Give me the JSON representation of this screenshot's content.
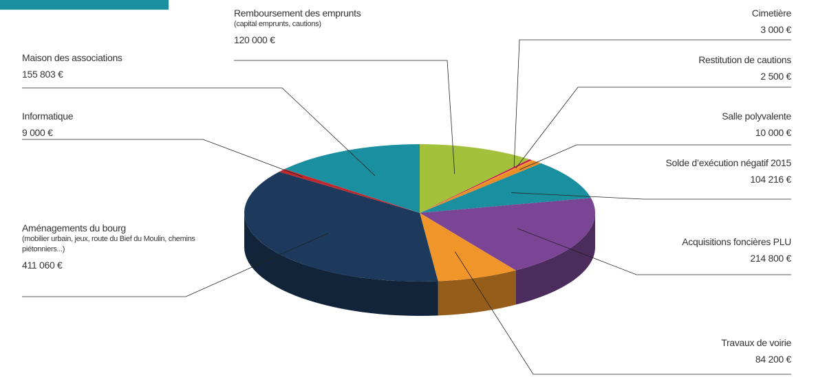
{
  "chart_data": {
    "type": "pie",
    "categories": [
      "Remboursement des emprunts",
      "Cimetière",
      "Restitution de cautions",
      "Salle polyvalente",
      "Solde d’exécution négatif 2015",
      "Acquisitions foncières PLU",
      "Travaux de voirie",
      "Aménagements du bourg",
      "Informatique",
      "Maison des associations"
    ],
    "subtitles": [
      "(capital emprunts, cautions)",
      null,
      null,
      null,
      null,
      null,
      null,
      "(mobilier urbain, jeux, route du Bief du Moulin, chemins piétonniers...)",
      null,
      null
    ],
    "values": [
      120000,
      3000,
      2500,
      10000,
      104216,
      214800,
      84200,
      411060,
      9000,
      155803
    ],
    "value_labels": [
      "120 000 €",
      "3 000 €",
      "2 500 €",
      "10 000 €",
      "104 216 €",
      "214 800 €",
      "84 200 €",
      "411 060 €",
      "9 000 €",
      "155 803 €"
    ],
    "colors": [
      "#a3c13b",
      "#c2185b",
      "#f39a1f",
      "#e98d28",
      "#1a8fa0",
      "#7b4596",
      "#f0952a",
      "#1d3a5c",
      "#c0282d",
      "#1a8fa0"
    ]
  }
}
